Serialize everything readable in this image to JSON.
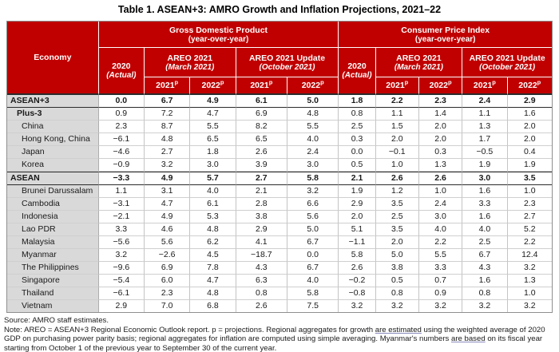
{
  "title": "Table 1. ASEAN+3: AMRO Growth and Inflation Projections, 2021–22",
  "colors": {
    "header_red": "#C00000",
    "header_text": "#FFFFFF",
    "economy_column_bg": "#D9D9D9",
    "heavy_rule": "#2B2B2B"
  },
  "table": {
    "corner_label": "Economy",
    "groups": [
      {
        "label": "Gross Domestic Product",
        "sub": "(year-over-year)"
      },
      {
        "label": "Consumer Price Index",
        "sub": "(year-over-year)"
      }
    ],
    "actual_col": {
      "label": "2020",
      "sub": "(Actual)"
    },
    "areo_cols": [
      {
        "label": "AREO 2021",
        "sub": "(March 2021)"
      },
      {
        "label": "AREO 2021 Update",
        "sub": "(October 2021)"
      }
    ],
    "year_cols": [
      {
        "label": "2021",
        "sup": "p"
      },
      {
        "label": "2022",
        "sup": "p"
      }
    ],
    "column_order": [
      "GDP 2020 Actual",
      "GDP AREO 2021 (March) 2021p",
      "GDP AREO 2021 (March) 2022p",
      "GDP AREO 2021 Update (October) 2021p",
      "GDP AREO 2021 Update (October) 2022p",
      "CPI 2020 Actual",
      "CPI AREO 2021 (March) 2021p",
      "CPI AREO 2021 (March) 2022p",
      "CPI AREO 2021 Update (October) 2021p",
      "CPI AREO 2021 Update (October) 2022p"
    ],
    "rows": [
      {
        "economy": "ASEAN+3",
        "kind": "total",
        "values": [
          "0.0",
          "6.7",
          "4.9",
          "6.1",
          "5.0",
          "1.8",
          "2.2",
          "2.3",
          "2.4",
          "2.9"
        ]
      },
      {
        "economy": "Plus-3",
        "kind": "group",
        "values": [
          "0.9",
          "7.2",
          "4.7",
          "6.9",
          "4.8",
          "0.8",
          "1.1",
          "1.4",
          "1.1",
          "1.6"
        ]
      },
      {
        "economy": "China",
        "kind": "member",
        "values": [
          "2.3",
          "8.7",
          "5.5",
          "8.2",
          "5.5",
          "2.5",
          "1.5",
          "2.0",
          "1.3",
          "2.0"
        ]
      },
      {
        "economy": "Hong Kong, China",
        "kind": "member",
        "values": [
          "−6.1",
          "4.8",
          "6.5",
          "6.5",
          "4.0",
          "0.3",
          "2.0",
          "2.0",
          "1.7",
          "2.0"
        ]
      },
      {
        "economy": "Japan",
        "kind": "member",
        "values": [
          "−4.6",
          "2.7",
          "1.8",
          "2.6",
          "2.4",
          "0.0",
          "−0.1",
          "0.3",
          "−0.5",
          "0.4"
        ]
      },
      {
        "economy": "Korea",
        "kind": "member",
        "values": [
          "−0.9",
          "3.2",
          "3.0",
          "3.9",
          "3.0",
          "0.5",
          "1.0",
          "1.3",
          "1.9",
          "1.9"
        ]
      },
      {
        "economy": "ASEAN",
        "kind": "total",
        "values": [
          "−3.3",
          "4.9",
          "5.7",
          "2.7",
          "5.8",
          "2.1",
          "2.6",
          "2.6",
          "3.0",
          "3.5"
        ]
      },
      {
        "economy": "Brunei Darussalam",
        "kind": "member",
        "values": [
          "1.1",
          "3.1",
          "4.0",
          "2.1",
          "3.2",
          "1.9",
          "1.2",
          "1.0",
          "1.6",
          "1.0"
        ]
      },
      {
        "economy": "Cambodia",
        "kind": "member",
        "values": [
          "−3.1",
          "4.7",
          "6.1",
          "2.8",
          "6.6",
          "2.9",
          "3.5",
          "2.4",
          "3.3",
          "2.3"
        ]
      },
      {
        "economy": "Indonesia",
        "kind": "member",
        "values": [
          "−2.1",
          "4.9",
          "5.3",
          "3.8",
          "5.6",
          "2.0",
          "2.5",
          "3.0",
          "1.6",
          "2.7"
        ]
      },
      {
        "economy": "Lao PDR",
        "kind": "member",
        "values": [
          "3.3",
          "4.6",
          "4.8",
          "2.9",
          "5.0",
          "5.1",
          "3.5",
          "4.0",
          "4.0",
          "5.2"
        ]
      },
      {
        "economy": "Malaysia",
        "kind": "member",
        "values": [
          "−5.6",
          "5.6",
          "6.2",
          "4.1",
          "6.7",
          "−1.1",
          "2.0",
          "2.2",
          "2.5",
          "2.2"
        ]
      },
      {
        "economy": "Myanmar",
        "kind": "member",
        "values": [
          "3.2",
          "−2.6",
          "4.5",
          "−18.7",
          "0.0",
          "5.8",
          "5.0",
          "5.5",
          "6.7",
          "12.4"
        ]
      },
      {
        "economy": "The Philippines",
        "kind": "member",
        "values": [
          "−9.6",
          "6.9",
          "7.8",
          "4.3",
          "6.7",
          "2.6",
          "3.8",
          "3.3",
          "4.3",
          "3.2"
        ]
      },
      {
        "economy": "Singapore",
        "kind": "member",
        "values": [
          "−5.4",
          "6.0",
          "4.7",
          "6.3",
          "4.0",
          "−0.2",
          "0.5",
          "0.7",
          "1.6",
          "1.3"
        ]
      },
      {
        "economy": "Thailand",
        "kind": "member",
        "values": [
          "−6.1",
          "2.3",
          "4.8",
          "0.8",
          "5.8",
          "−0.8",
          "0.8",
          "0.9",
          "0.8",
          "1.0"
        ]
      },
      {
        "economy": "Vietnam",
        "kind": "member",
        "values": [
          "2.9",
          "7.0",
          "6.8",
          "2.6",
          "7.5",
          "3.2",
          "3.2",
          "3.2",
          "3.2",
          "3.2"
        ]
      }
    ]
  },
  "notes": {
    "source": "Source: AMRO staff estimates.",
    "note_segments": [
      {
        "text": "Note: AREO = ASEAN+3 Regional Economic Outlook report. p = projections. Regional aggregates for growth ",
        "underline": false
      },
      {
        "text": "are estimated",
        "underline": true
      },
      {
        "text": " using the weighted average of 2020 GDP on purchasing power parity basis; regional aggregates for inflation are computed using simple averaging. Myanmar's numbers ",
        "underline": false
      },
      {
        "text": "are based",
        "underline": true
      },
      {
        "text": " on its fiscal year starting from October 1 of the previous year to September 30 of the current year.",
        "underline": false
      }
    ]
  }
}
